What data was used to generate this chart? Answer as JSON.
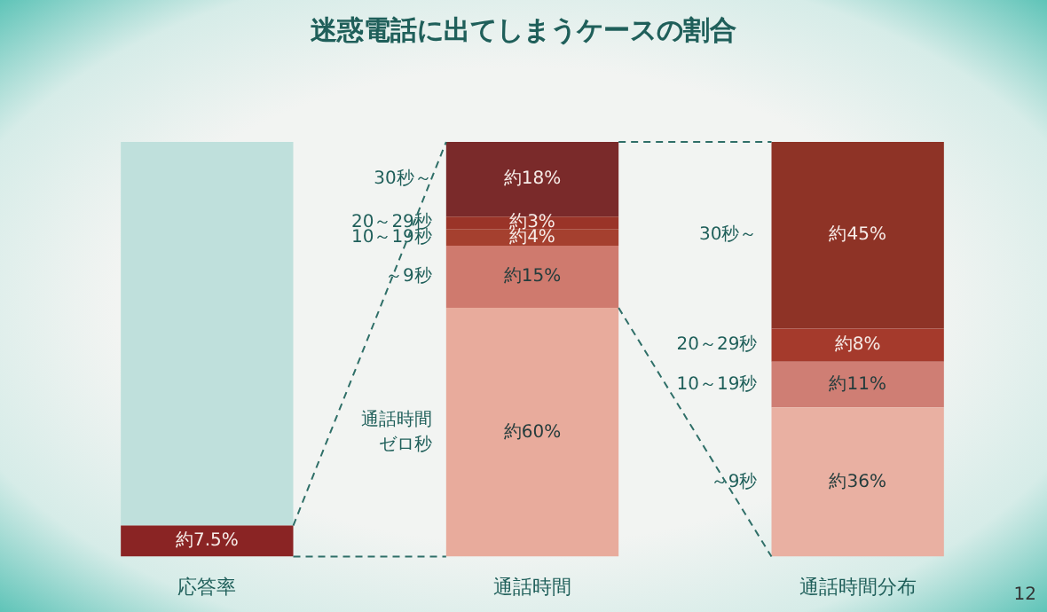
{
  "chart_data": {
    "type": "bar",
    "stacked": true,
    "title": "迷惑電話に出てしまうケースの割合",
    "categories": [
      "応答率",
      "通話時間",
      "通話時間分布"
    ],
    "ylim": [
      0,
      100
    ],
    "tick_labels": "x",
    "legend": false,
    "annotations": [
      "12"
    ],
    "series": [
      {
        "colors": [
          "#8a2424",
          null,
          null
        ],
        "values": [
          7.5,
          null,
          null
        ],
        "value_labels": [
          "約7.5%",
          null,
          null
        ]
      },
      {
        "colors": [
          "#bfe0dc",
          null,
          null
        ],
        "values": [
          92.5,
          null,
          null
        ]
      },
      {
        "name": "通話時間ゼロ秒",
        "colors": [
          null,
          "#e8ab9c",
          null
        ],
        "values": [
          null,
          60,
          null
        ],
        "value_labels": [
          null,
          "約60%",
          null
        ]
      },
      {
        "name": "～9秒",
        "colors": [
          null,
          "#cf7a6e",
          "#e9b0a2"
        ],
        "values": [
          null,
          15,
          36
        ],
        "value_labels": [
          null,
          "約15%",
          "約36%"
        ]
      },
      {
        "name": "10～19秒",
        "colors": [
          null,
          "#a5402f",
          "#cf7e74"
        ],
        "values": [
          null,
          4,
          11
        ],
        "value_labels": [
          null,
          "約4%",
          "約11%"
        ]
      },
      {
        "name": "20～29秒",
        "colors": [
          null,
          "#9a3428",
          "#a53a2c"
        ],
        "values": [
          null,
          3,
          8
        ],
        "value_labels": [
          null,
          "約3%",
          "約8%"
        ]
      },
      {
        "name": "30秒～",
        "colors": [
          null,
          "#7a2a2a",
          "#8e3326"
        ],
        "values": [
          null,
          18,
          45
        ],
        "value_labels": [
          null,
          "約18%",
          "約45%"
        ]
      }
    ]
  }
}
